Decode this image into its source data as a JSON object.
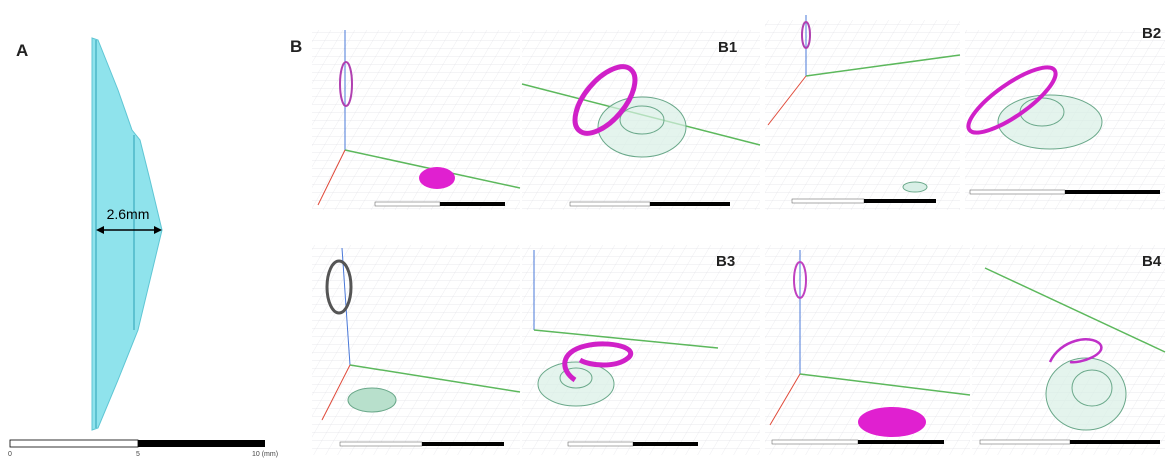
{
  "panel_a": {
    "label": "A",
    "measurement": "2.6mm",
    "scale_bar": {
      "ticks": [
        "0",
        "5",
        "10 (mm)"
      ]
    }
  },
  "panel_b": {
    "label": "B",
    "subpanels": [
      "B1",
      "B2",
      "B3",
      "B4"
    ]
  }
}
